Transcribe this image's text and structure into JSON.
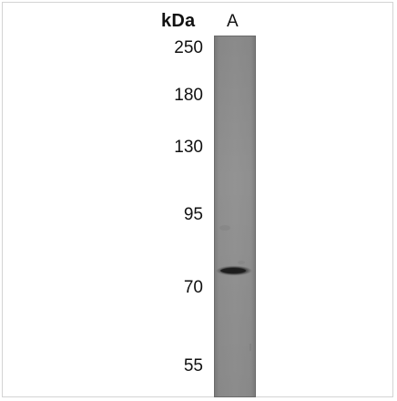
{
  "blot": {
    "unit_label": "kDa",
    "lanes": [
      {
        "label": "A"
      }
    ],
    "markers": [
      {
        "label": "250"
      },
      {
        "label": "180"
      },
      {
        "label": "130"
      },
      {
        "label": "95"
      },
      {
        "label": "70"
      },
      {
        "label": "55"
      }
    ],
    "colors": {
      "membrane": "#8e8e8e",
      "band": "#2a2a2a",
      "text": "#111111"
    }
  }
}
